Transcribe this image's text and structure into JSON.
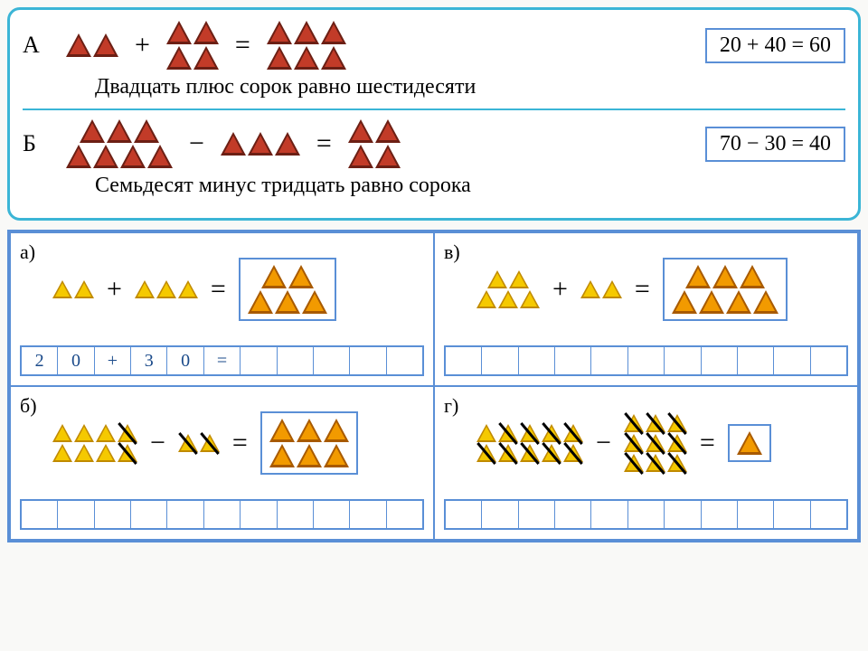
{
  "top": {
    "examples": [
      {
        "label": "А",
        "color": "red",
        "left_rows": [
          2
        ],
        "op": "+",
        "mid_rows": [
          2,
          2
        ],
        "right_rows": [
          3,
          3
        ],
        "answer": "20 + 40 = 60",
        "sentence": "Двадцать плюс сорок равно шестидесяти"
      },
      {
        "label": "Б",
        "color": "red",
        "left_rows": [
          3,
          4
        ],
        "op": "−",
        "mid_rows": [
          3
        ],
        "right_rows": [
          2,
          2
        ],
        "answer": "70 − 30 = 40",
        "sentence": "Семьдесят минус тридцать равно сорока"
      }
    ]
  },
  "grid": {
    "cells": [
      {
        "label": "а)",
        "color": "yellow",
        "left_rows": [
          [
            0,
            0
          ]
        ],
        "op": "+",
        "mid_rows": [
          [
            0,
            0,
            0
          ]
        ],
        "result_color": "orange",
        "result_rows": [
          [
            0,
            0
          ],
          [
            0,
            0,
            0
          ]
        ],
        "write": [
          "2",
          "0",
          "+",
          "3",
          "0",
          "=",
          "",
          "",
          "",
          "",
          ""
        ]
      },
      {
        "label": "в)",
        "color": "yellow",
        "left_rows": [
          [
            0,
            0
          ],
          [
            0,
            0,
            0
          ]
        ],
        "op": "+",
        "mid_rows": [
          [
            0,
            0
          ]
        ],
        "result_color": "orange",
        "result_rows": [
          [
            0,
            0,
            0
          ],
          [
            0,
            0,
            0,
            0
          ]
        ],
        "write": [
          "",
          "",
          "",
          "",
          "",
          "",
          "",
          "",
          "",
          "",
          ""
        ]
      },
      {
        "label": "б)",
        "color": "yellow",
        "left_rows": [
          [
            0,
            0,
            0,
            1
          ],
          [
            0,
            0,
            0,
            1
          ]
        ],
        "op": "−",
        "mid_rows": [
          [
            1,
            1
          ]
        ],
        "result_color": "orange",
        "result_rows": [
          [
            0,
            0,
            0
          ],
          [
            0,
            0,
            0
          ]
        ],
        "write": [
          "",
          "",
          "",
          "",
          "",
          "",
          "",
          "",
          "",
          "",
          ""
        ]
      },
      {
        "label": "г)",
        "color": "yellow",
        "left_rows": [
          [
            0,
            1,
            1,
            1,
            1
          ],
          [
            1,
            1,
            1,
            1,
            1
          ]
        ],
        "op": "−",
        "mid_rows": [
          [
            1,
            1,
            1
          ],
          [
            1,
            1,
            1
          ],
          [
            1,
            1,
            1
          ]
        ],
        "result_color": "orange",
        "result_rows": [
          [
            0
          ]
        ],
        "write": [
          "",
          "",
          "",
          "",
          "",
          "",
          "",
          "",
          "",
          "",
          ""
        ]
      }
    ]
  }
}
